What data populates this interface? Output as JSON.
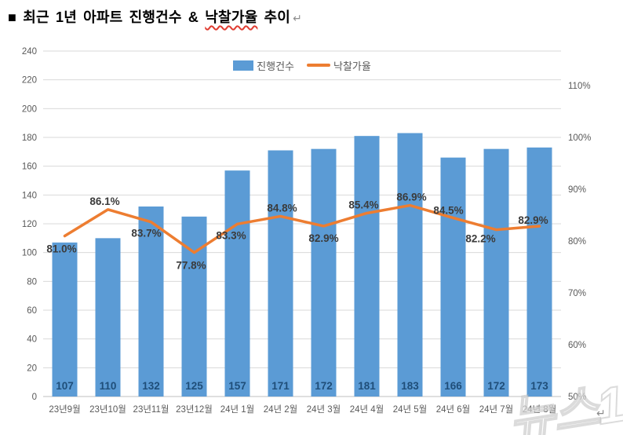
{
  "document": {
    "title_prefix": "■ 최근 1년 아파트 진행건수 & ",
    "title_underlined": "낙찰가율",
    "title_suffix": " 추이",
    "paragraph_mark": "↵",
    "watermark_text": "뉴스1"
  },
  "chart_data": {
    "type": "bar+line",
    "title": "최근 1년 아파트 진행건수 & 낙찰가율 추이",
    "categories": [
      "23년9월",
      "23년10월",
      "23년11월",
      "23년12월",
      "24년 1월",
      "24년 2월",
      "24년 3월",
      "24년 4월",
      "24년 5월",
      "24년 6월",
      "24년 7월",
      "24년 8월"
    ],
    "series": [
      {
        "name": "진행건수",
        "type": "bar",
        "axis": "left",
        "color": "#5b9bd5",
        "label_color": "#1f4e79",
        "values": [
          107,
          110,
          132,
          125,
          157,
          171,
          172,
          181,
          183,
          166,
          172,
          173
        ]
      },
      {
        "name": "낙찰가율",
        "type": "line",
        "axis": "right",
        "color": "#ed7d31",
        "label_color": "#3b3b3b",
        "unit": "%",
        "values": [
          81.0,
          86.1,
          83.7,
          77.8,
          83.3,
          84.8,
          82.9,
          85.4,
          86.9,
          84.5,
          82.2,
          82.9
        ]
      }
    ],
    "left_axis": {
      "min": 0,
      "max": 240,
      "step": 20
    },
    "right_axis": {
      "min": 50,
      "max": 116.7,
      "ticks": [
        50,
        60,
        70,
        80,
        90,
        100,
        110
      ],
      "format": "%"
    },
    "grid": true,
    "gridline_color": "#d9d9d9",
    "axis_line_color": "#bfbfbf",
    "legend_position": "top"
  }
}
